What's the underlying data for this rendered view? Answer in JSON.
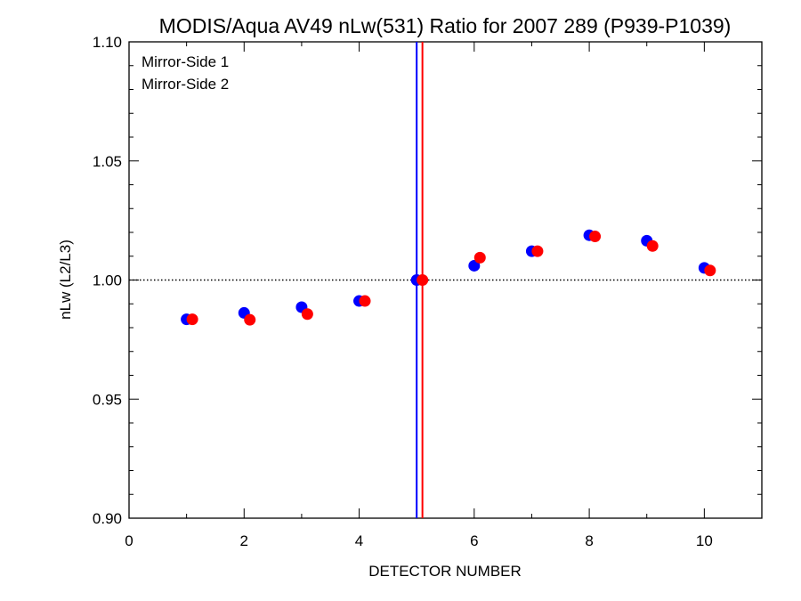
{
  "chart_data": {
    "type": "scatter",
    "title": "MODIS/Aqua AV49 nLw(531) Ratio for 2007 289 (P939-P1039)",
    "xlabel": "DETECTOR NUMBER",
    "ylabel": "nLw (L2/L3)",
    "xlim": [
      0,
      11
    ],
    "ylim": [
      0.9,
      1.1
    ],
    "x_ticks": [
      0,
      2,
      4,
      6,
      8,
      10
    ],
    "x_tick_labels": [
      "0",
      "2",
      "4",
      "6",
      "8",
      "10"
    ],
    "y_ticks": [
      0.9,
      0.95,
      1.0,
      1.05,
      1.1
    ],
    "y_tick_labels": [
      "0.90",
      "0.95",
      "1.00",
      "1.05",
      "1.10"
    ],
    "reference_line_y": 1.0,
    "vertical_lines": [
      {
        "x": 5.0,
        "color": "#0000ff"
      },
      {
        "x": 5.1,
        "color": "#ff0000"
      }
    ],
    "legend_position": "top-left",
    "series": [
      {
        "name": "Mirror-Side 1",
        "color": "#0000ff",
        "x": [
          1,
          2,
          3,
          4,
          5,
          6,
          7,
          8,
          9,
          10
        ],
        "y": [
          0.9835,
          0.9862,
          0.9886,
          0.9912,
          1.0,
          1.006,
          1.0121,
          1.0188,
          1.0165,
          1.0051
        ]
      },
      {
        "name": "Mirror-Side 2",
        "color": "#ff0000",
        "x": [
          1.1,
          2.1,
          3.1,
          4.1,
          5.1,
          6.1,
          7.1,
          8.1,
          9.1,
          10.1
        ],
        "y": [
          0.9835,
          0.9833,
          0.9857,
          0.9912,
          1.0,
          1.0094,
          1.0121,
          1.0183,
          1.0143,
          1.004
        ]
      }
    ]
  }
}
